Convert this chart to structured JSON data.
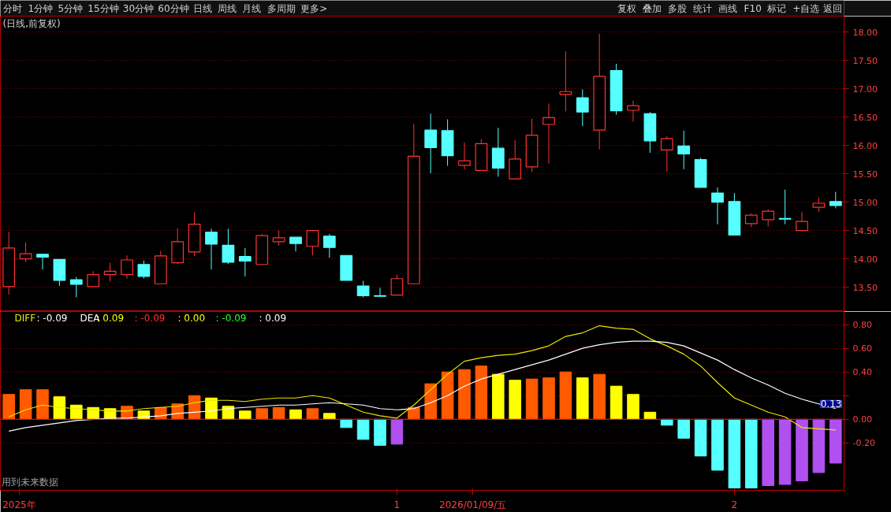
{
  "chart_data": [
    {
      "type": "candlestick",
      "title": "(日线,前复权)",
      "categories": [
        null,
        null,
        null,
        null,
        null,
        null,
        null,
        null,
        null,
        null,
        null,
        null,
        null,
        null,
        null,
        null,
        null,
        null,
        null,
        null,
        null,
        null,
        null,
        null,
        null,
        null,
        null,
        null,
        null,
        null,
        null,
        null,
        null,
        null,
        null,
        null,
        null,
        null,
        null,
        null,
        null,
        null,
        null,
        null,
        null,
        null,
        null,
        null,
        null,
        null
      ],
      "ohlc": [
        [
          13.51,
          14.47,
          13.37,
          14.19
        ],
        [
          14.0,
          14.29,
          13.94,
          14.09
        ],
        [
          14.08,
          14.08,
          13.81,
          14.03
        ],
        [
          13.99,
          13.99,
          13.52,
          13.62
        ],
        [
          13.63,
          13.68,
          13.32,
          13.55
        ],
        [
          13.51,
          13.78,
          13.51,
          13.72
        ],
        [
          13.72,
          13.93,
          13.6,
          13.78
        ],
        [
          13.72,
          14.06,
          13.65,
          13.98
        ],
        [
          13.9,
          13.97,
          13.65,
          13.69
        ],
        [
          13.56,
          14.14,
          13.56,
          14.05
        ],
        [
          13.93,
          14.54,
          13.91,
          14.3
        ],
        [
          14.12,
          14.82,
          14.05,
          14.61
        ],
        [
          14.47,
          14.53,
          13.81,
          14.26
        ],
        [
          14.24,
          14.53,
          13.91,
          13.94
        ],
        [
          14.04,
          14.19,
          13.69,
          13.96
        ],
        [
          13.9,
          14.44,
          13.9,
          14.41
        ],
        [
          14.3,
          14.5,
          14.23,
          14.37
        ],
        [
          14.38,
          14.38,
          14.13,
          14.27
        ],
        [
          14.22,
          14.5,
          14.06,
          14.5
        ],
        [
          14.4,
          14.44,
          14.02,
          14.2
        ],
        [
          14.06,
          14.06,
          13.62,
          13.62
        ],
        [
          13.52,
          13.61,
          13.32,
          13.35
        ],
        [
          13.35,
          13.49,
          13.34,
          13.34
        ],
        [
          13.36,
          13.72,
          13.36,
          13.65
        ],
        [
          13.56,
          16.38,
          13.56,
          15.81
        ],
        [
          16.27,
          16.56,
          15.51,
          15.96
        ],
        [
          16.26,
          16.46,
          15.64,
          15.82
        ],
        [
          15.65,
          16.05,
          15.58,
          15.73
        ],
        [
          15.56,
          16.11,
          15.56,
          16.03
        ],
        [
          15.95,
          16.31,
          15.45,
          15.6
        ],
        [
          15.41,
          16.09,
          15.41,
          15.76
        ],
        [
          15.62,
          16.47,
          15.53,
          16.18
        ],
        [
          16.37,
          16.74,
          15.68,
          16.49
        ],
        [
          16.9,
          17.66,
          16.6,
          16.95
        ],
        [
          16.84,
          16.99,
          16.34,
          16.59
        ],
        [
          16.27,
          17.97,
          15.93,
          17.22
        ],
        [
          17.32,
          17.44,
          16.54,
          16.61
        ],
        [
          16.62,
          16.79,
          16.42,
          16.7
        ],
        [
          16.56,
          16.59,
          15.87,
          16.08
        ],
        [
          15.92,
          16.16,
          15.54,
          16.12
        ],
        [
          15.99,
          16.26,
          15.58,
          15.85
        ],
        [
          15.75,
          15.78,
          15.26,
          15.26
        ],
        [
          15.16,
          15.26,
          14.61,
          15.0
        ],
        [
          15.01,
          15.16,
          14.41,
          14.42
        ],
        [
          14.62,
          14.8,
          14.56,
          14.77
        ],
        [
          14.69,
          14.87,
          14.57,
          14.84
        ],
        [
          14.71,
          15.22,
          14.61,
          14.7
        ],
        [
          14.5,
          14.83,
          14.49,
          14.66
        ],
        [
          14.91,
          15.08,
          14.83,
          14.98
        ],
        [
          15.01,
          15.18,
          14.89,
          14.94
        ]
      ],
      "ylim": [
        13.07,
        18.28
      ],
      "yticks": [
        {
          "value": 13.5,
          "label": "13.50"
        },
        {
          "value": 14,
          "label": "14.00"
        },
        {
          "value": 14.5,
          "label": "14.50"
        },
        {
          "value": 15,
          "label": "15.00"
        },
        {
          "value": 15.5,
          "label": "15.50"
        },
        {
          "value": 16,
          "label": "16.00"
        },
        {
          "value": 16.5,
          "label": "16.50"
        },
        {
          "value": 17,
          "label": "17.00"
        },
        {
          "value": 17.5,
          "label": "17.50"
        },
        {
          "value": 18,
          "label": "18.00"
        }
      ],
      "grid": "y",
      "tick_labels": "y",
      "annotations": [
        "分时",
        "1分钟",
        "5分钟",
        "15分钟",
        "30分钟",
        "60分钟",
        "日线",
        "周线",
        "月线",
        "多周期",
        "更多>",
        "复权",
        "叠加",
        "多股",
        "统计",
        "画线",
        "F10",
        "标记",
        "+自选",
        "返回"
      ]
    },
    {
      "type": "bar",
      "categories": [
        null,
        null,
        null,
        null,
        null,
        null,
        null,
        null,
        null,
        null,
        null,
        null,
        null,
        null,
        null,
        null,
        null,
        null,
        null,
        null,
        null,
        null,
        null,
        "1",
        null,
        null,
        null,
        null,
        null,
        null,
        null,
        null,
        null,
        null,
        null,
        null,
        null,
        null,
        null,
        null,
        null,
        null,
        null,
        "2",
        null,
        null,
        null,
        null,
        null,
        null
      ],
      "series": [
        {
          "type": "bar",
          "values": [
            0.21,
            0.25,
            0.25,
            0.19,
            0.12,
            0.1,
            0.09,
            0.11,
            0.07,
            0.1,
            0.13,
            0.2,
            0.18,
            0.11,
            0.07,
            0.09,
            0.1,
            0.08,
            0.09,
            0.05,
            -0.07,
            -0.17,
            -0.22,
            -0.21,
            0.1,
            0.3,
            0.4,
            0.42,
            0.45,
            0.38,
            0.33,
            0.34,
            0.35,
            0.4,
            0.35,
            0.38,
            0.28,
            0.21,
            0.06,
            -0.05,
            -0.16,
            -0.31,
            -0.43,
            -0.58,
            -0.58,
            -0.56,
            -0.55,
            -0.52,
            -0.45,
            -0.37
          ],
          "colors": [
            "#ff5a00",
            "#ff5a00",
            "#ff5a00",
            "#ffff00",
            "#ffff00",
            "#ffff00",
            "#ffff00",
            "#ff5a00",
            "#ffff00",
            "#ff5a00",
            "#ff5a00",
            "#ff5a00",
            "#ffff00",
            "#ffff00",
            "#ffff00",
            "#ff5a00",
            "#ff5a00",
            "#ffff00",
            "#ff5a00",
            "#ffff00",
            "#55ffff",
            "#55ffff",
            "#55ffff",
            "#b050f0",
            "#ff5a00",
            "#ff5a00",
            "#ff5a00",
            "#ff5a00",
            "#ff5a00",
            "#ffff00",
            "#ffff00",
            "#ff5a00",
            "#ff5a00",
            "#ff5a00",
            "#ffff00",
            "#ff5a00",
            "#ffff00",
            "#ffff00",
            "#ffff00",
            "#55ffff",
            "#55ffff",
            "#55ffff",
            "#55ffff",
            "#55ffff",
            "#55ffff",
            "#b050f0",
            "#b050f0",
            "#b050f0",
            "#b050f0",
            "#b050f0"
          ]
        },
        {
          "type": "line",
          "name": "DIFF",
          "color": "#e8e800",
          "values": [
            0.02,
            0.08,
            0.12,
            0.1,
            0.09,
            0.08,
            0.07,
            0.07,
            0.09,
            0.1,
            0.11,
            0.14,
            0.16,
            0.16,
            0.15,
            0.17,
            0.18,
            0.18,
            0.2,
            0.18,
            0.12,
            0.06,
            0.03,
            0.01,
            0.12,
            0.25,
            0.38,
            0.49,
            0.52,
            0.54,
            0.55,
            0.58,
            0.62,
            0.7,
            0.73,
            0.79,
            0.77,
            0.76,
            0.68,
            0.62,
            0.55,
            0.45,
            0.31,
            0.18,
            0.12,
            0.06,
            0.02,
            -0.07,
            -0.08,
            -0.09
          ]
        },
        {
          "type": "line",
          "name": "DEA",
          "color": "#ffffff",
          "values": [
            -0.1,
            -0.07,
            -0.05,
            -0.03,
            -0.01,
            0.0,
            0.01,
            0.01,
            0.02,
            0.03,
            0.05,
            0.06,
            0.07,
            0.09,
            0.1,
            0.11,
            0.12,
            0.12,
            0.13,
            0.14,
            0.13,
            0.12,
            0.09,
            0.08,
            0.09,
            0.14,
            0.2,
            0.28,
            0.34,
            0.38,
            0.42,
            0.46,
            0.5,
            0.55,
            0.6,
            0.63,
            0.65,
            0.66,
            0.66,
            0.65,
            0.62,
            0.56,
            0.5,
            0.42,
            0.35,
            0.29,
            0.22,
            0.17,
            0.13,
            0.09
          ]
        }
      ],
      "ylim": [
        -0.6,
        0.91
      ],
      "yticks": [
        {
          "value": -0.2,
          "label": "-0.20"
        },
        {
          "value": 0,
          "label": "0.00"
        },
        {
          "value": 0.2,
          "label": null
        },
        {
          "value": 0.4,
          "label": "0.40"
        },
        {
          "value": 0.6,
          "label": "0.60"
        },
        {
          "value": 0.8,
          "label": "0.80"
        }
      ],
      "grid": "y",
      "ref_lines": [
        {
          "axis": "y",
          "value": 0,
          "color": "#ff0000"
        }
      ],
      "annotations": [
        ": -0.09",
        ": 0.09",
        ": -0.09",
        ": 0.00",
        ": -0.09",
        ": 0.09",
        "用到未来数据",
        "2026/01/09/五",
        {
          "text": "0.13",
          "y": 0.13
        },
        "2025年"
      ]
    }
  ]
}
